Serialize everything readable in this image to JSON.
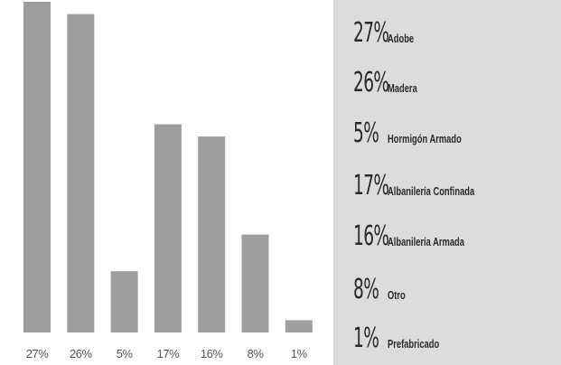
{
  "chart_data": {
    "type": "bar",
    "categories": [
      "Adobe",
      "Madera",
      "Hormigón Armado",
      "Albanilería Confinada",
      "Albanilería Armada",
      "Otro",
      "Prefabricado"
    ],
    "values": [
      27,
      26,
      5,
      17,
      16,
      8,
      1
    ],
    "x_tick_labels": [
      "27%",
      "26%",
      "5%",
      "17%",
      "16%",
      "8%",
      "1%"
    ],
    "ylim": [
      0,
      27
    ],
    "bar_color": "#9e9e9e",
    "grid": false,
    "legend_placement": "right"
  },
  "legend": {
    "items": [
      {
        "pct": "27%",
        "label": "Adobe"
      },
      {
        "pct": "26%",
        "label": "Madera"
      },
      {
        "pct": "5%",
        "label": "Hormigón Armado"
      },
      {
        "pct": "17%",
        "label": "Albanilería Confinada"
      },
      {
        "pct": "16%",
        "label": "Albanilería Armada"
      },
      {
        "pct": "8%",
        "label": "Otro"
      },
      {
        "pct": "1%",
        "label": "Prefabricado"
      }
    ],
    "background": "#dcdcdc"
  }
}
